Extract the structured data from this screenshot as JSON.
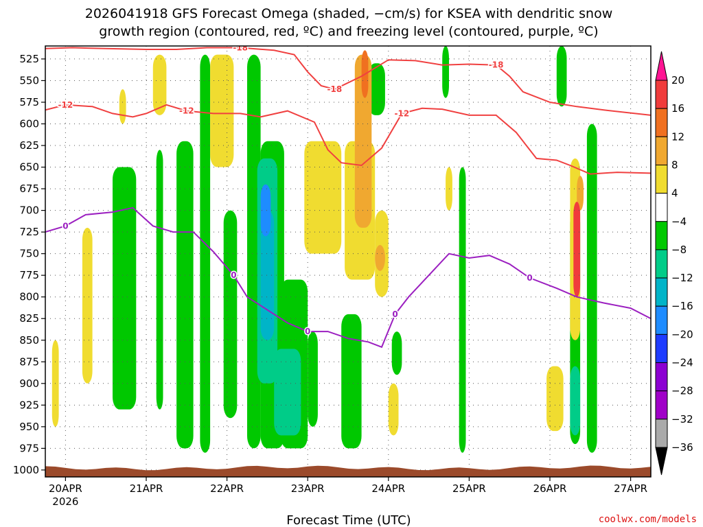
{
  "chart_data": {
    "type": "heatmap",
    "title_lines": [
      "2026041918 GFS Forecast Omega (shaded, −cm/s) for KSEA with dendritic snow",
      "growth region (contoured, red, ºC) and freezing level (contoured, purple, ºC)"
    ],
    "xlabel": "Forecast Time (UTC)",
    "credit": "coolwx.com/models",
    "x_ticks": [
      {
        "label": "20APR",
        "sub": "2026",
        "hour": 0
      },
      {
        "label": "21APR",
        "sub": "",
        "hour": 24
      },
      {
        "label": "22APR",
        "sub": "",
        "hour": 48
      },
      {
        "label": "23APR",
        "sub": "",
        "hour": 72
      },
      {
        "label": "24APR",
        "sub": "",
        "hour": 96
      },
      {
        "label": "25APR",
        "sub": "",
        "hour": 120
      },
      {
        "label": "26APR",
        "sub": "",
        "hour": 144
      },
      {
        "label": "27APR",
        "sub": "",
        "hour": 168
      }
    ],
    "x_range_hours": [
      -6,
      174
    ],
    "y_axis": {
      "ticks": [
        525,
        550,
        575,
        600,
        625,
        650,
        675,
        700,
        725,
        750,
        775,
        800,
        825,
        850,
        875,
        900,
        925,
        950,
        975,
        1000
      ],
      "range": [
        510,
        1008
      ],
      "inverted": true
    },
    "grid": true,
    "colorbar": {
      "labels": [
        "20",
        "16",
        "12",
        "8",
        "4",
        "−4",
        "−8",
        "−12",
        "−16",
        "−20",
        "−24",
        "−28",
        "−32",
        "−36"
      ],
      "colors": [
        "#ff1493",
        "#f03c3c",
        "#f07020",
        "#f0a830",
        "#f0dc30",
        "#ffffff",
        "#00c800",
        "#00cc88",
        "#00b4c8",
        "#1e8cff",
        "#1e3cff",
        "#8c00d2",
        "#a000c8",
        "#aaaaaa",
        "#000000"
      ]
    },
    "contour_labels": {
      "dgz": [
        "-12",
        "-18"
      ],
      "freezing": [
        "0"
      ]
    },
    "dgz_upper_line": {
      "name": "-18",
      "color": "#f04040",
      "points": [
        [
          -6,
          513
        ],
        [
          2,
          512
        ],
        [
          12,
          513
        ],
        [
          24,
          514
        ],
        [
          33,
          514
        ],
        [
          42,
          512
        ],
        [
          52,
          512
        ],
        [
          62,
          515
        ],
        [
          68,
          520
        ],
        [
          72,
          540
        ],
        [
          76,
          556
        ],
        [
          80,
          560
        ],
        [
          88,
          545
        ],
        [
          96,
          526
        ],
        [
          104,
          527
        ],
        [
          112,
          532
        ],
        [
          120,
          531
        ],
        [
          128,
          532
        ],
        [
          132,
          545
        ],
        [
          136,
          563
        ],
        [
          144,
          575
        ],
        [
          152,
          580
        ],
        [
          160,
          584
        ],
        [
          174,
          590
        ]
      ]
    },
    "dgz_lower_line": {
      "name": "-12",
      "color": "#f04040",
      "points": [
        [
          -6,
          584
        ],
        [
          0,
          578
        ],
        [
          8,
          580
        ],
        [
          14,
          588
        ],
        [
          20,
          592
        ],
        [
          24,
          588
        ],
        [
          30,
          578
        ],
        [
          36,
          585
        ],
        [
          44,
          588
        ],
        [
          52,
          588
        ],
        [
          58,
          592
        ],
        [
          66,
          585
        ],
        [
          74,
          598
        ],
        [
          78,
          630
        ],
        [
          82,
          645
        ],
        [
          88,
          648
        ],
        [
          94,
          628
        ],
        [
          100,
          588
        ],
        [
          106,
          582
        ],
        [
          112,
          583
        ],
        [
          120,
          590
        ],
        [
          128,
          590
        ],
        [
          134,
          610
        ],
        [
          140,
          640
        ],
        [
          146,
          642
        ],
        [
          150,
          648
        ],
        [
          156,
          658
        ],
        [
          164,
          656
        ],
        [
          174,
          657
        ]
      ]
    },
    "freezing_line": {
      "name": "0",
      "color": "#9b1fc0",
      "points": [
        [
          -6,
          725
        ],
        [
          0,
          718
        ],
        [
          6,
          705
        ],
        [
          14,
          702
        ],
        [
          20,
          697
        ],
        [
          26,
          718
        ],
        [
          32,
          725
        ],
        [
          38,
          725
        ],
        [
          44,
          748
        ],
        [
          50,
          775
        ],
        [
          54,
          800
        ],
        [
          60,
          815
        ],
        [
          66,
          830
        ],
        [
          72,
          840
        ],
        [
          78,
          840
        ],
        [
          84,
          848
        ],
        [
          90,
          852
        ],
        [
          94,
          858
        ],
        [
          98,
          820
        ],
        [
          102,
          800
        ],
        [
          108,
          775
        ],
        [
          114,
          750
        ],
        [
          120,
          755
        ],
        [
          126,
          752
        ],
        [
          132,
          762
        ],
        [
          138,
          778
        ],
        [
          146,
          790
        ],
        [
          152,
          800
        ],
        [
          160,
          807
        ],
        [
          168,
          813
        ],
        [
          174,
          825
        ]
      ]
    },
    "shading": [
      {
        "value": -6,
        "x": [
          14,
          21
        ],
        "y": [
          650,
          930
        ]
      },
      {
        "value": -6,
        "x": [
          27,
          29
        ],
        "y": [
          630,
          930
        ]
      },
      {
        "value": -6,
        "x": [
          33,
          38
        ],
        "y": [
          620,
          975
        ]
      },
      {
        "value": -6,
        "x": [
          40,
          43
        ],
        "y": [
          520,
          980
        ]
      },
      {
        "value": -6,
        "x": [
          47,
          51
        ],
        "y": [
          700,
          940
        ]
      },
      {
        "value": -6,
        "x": [
          54,
          58
        ],
        "y": [
          520,
          975
        ]
      },
      {
        "value": -6,
        "x": [
          58,
          65
        ],
        "y": [
          620,
          975
        ]
      },
      {
        "value": -6,
        "x": [
          64,
          72
        ],
        "y": [
          780,
          975
        ]
      },
      {
        "value": -6,
        "x": [
          72,
          75
        ],
        "y": [
          840,
          950
        ]
      },
      {
        "value": -6,
        "x": [
          82,
          88
        ],
        "y": [
          820,
          975
        ]
      },
      {
        "value": -6,
        "x": [
          90,
          95
        ],
        "y": [
          530,
          590
        ]
      },
      {
        "value": -6,
        "x": [
          97,
          100
        ],
        "y": [
          840,
          890
        ]
      },
      {
        "value": -6,
        "x": [
          112,
          114
        ],
        "y": [
          510,
          570
        ]
      },
      {
        "value": -6,
        "x": [
          117,
          119
        ],
        "y": [
          650,
          980
        ]
      },
      {
        "value": -6,
        "x": [
          146,
          149
        ],
        "y": [
          510,
          580
        ]
      },
      {
        "value": -6,
        "x": [
          150,
          153
        ],
        "y": [
          700,
          970
        ]
      },
      {
        "value": -6,
        "x": [
          155,
          158
        ],
        "y": [
          600,
          980
        ]
      },
      {
        "value": -10,
        "x": [
          57,
          63
        ],
        "y": [
          640,
          900
        ]
      },
      {
        "value": -10,
        "x": [
          62,
          70
        ],
        "y": [
          860,
          960
        ]
      },
      {
        "value": -10,
        "x": [
          150,
          153
        ],
        "y": [
          880,
          960
        ]
      },
      {
        "value": -14,
        "x": [
          58,
          62
        ],
        "y": [
          700,
          850
        ]
      },
      {
        "value": -18,
        "x": [
          58,
          61
        ],
        "y": [
          670,
          730
        ]
      },
      {
        "value": 6,
        "x": [
          -4,
          -2
        ],
        "y": [
          850,
          950
        ]
      },
      {
        "value": 6,
        "x": [
          5,
          8
        ],
        "y": [
          720,
          900
        ]
      },
      {
        "value": 6,
        "x": [
          16,
          18
        ],
        "y": [
          560,
          600
        ]
      },
      {
        "value": 6,
        "x": [
          26,
          30
        ],
        "y": [
          520,
          590
        ]
      },
      {
        "value": 6,
        "x": [
          43,
          50
        ],
        "y": [
          520,
          650
        ]
      },
      {
        "value": 6,
        "x": [
          71,
          82
        ],
        "y": [
          620,
          750
        ]
      },
      {
        "value": 6,
        "x": [
          83,
          92
        ],
        "y": [
          620,
          780
        ]
      },
      {
        "value": 6,
        "x": [
          92,
          96
        ],
        "y": [
          700,
          800
        ]
      },
      {
        "value": 6,
        "x": [
          96,
          99
        ],
        "y": [
          900,
          960
        ]
      },
      {
        "value": 6,
        "x": [
          113,
          115
        ],
        "y": [
          650,
          700
        ]
      },
      {
        "value": 6,
        "x": [
          143,
          148
        ],
        "y": [
          880,
          955
        ]
      },
      {
        "value": 6,
        "x": [
          150,
          153
        ],
        "y": [
          640,
          850
        ]
      },
      {
        "value": 10,
        "x": [
          86,
          91
        ],
        "y": [
          520,
          720
        ]
      },
      {
        "value": 10,
        "x": [
          92,
          95
        ],
        "y": [
          740,
          770
        ]
      },
      {
        "value": 10,
        "x": [
          152,
          154
        ],
        "y": [
          660,
          700
        ]
      },
      {
        "value": 14,
        "x": [
          88,
          90
        ],
        "y": [
          515,
          570
        ]
      },
      {
        "value": 18,
        "x": [
          151,
          153
        ],
        "y": [
          690,
          800
        ]
      }
    ],
    "surface": {
      "color": "#9b4a2b",
      "top_pressure": 1000
    }
  }
}
